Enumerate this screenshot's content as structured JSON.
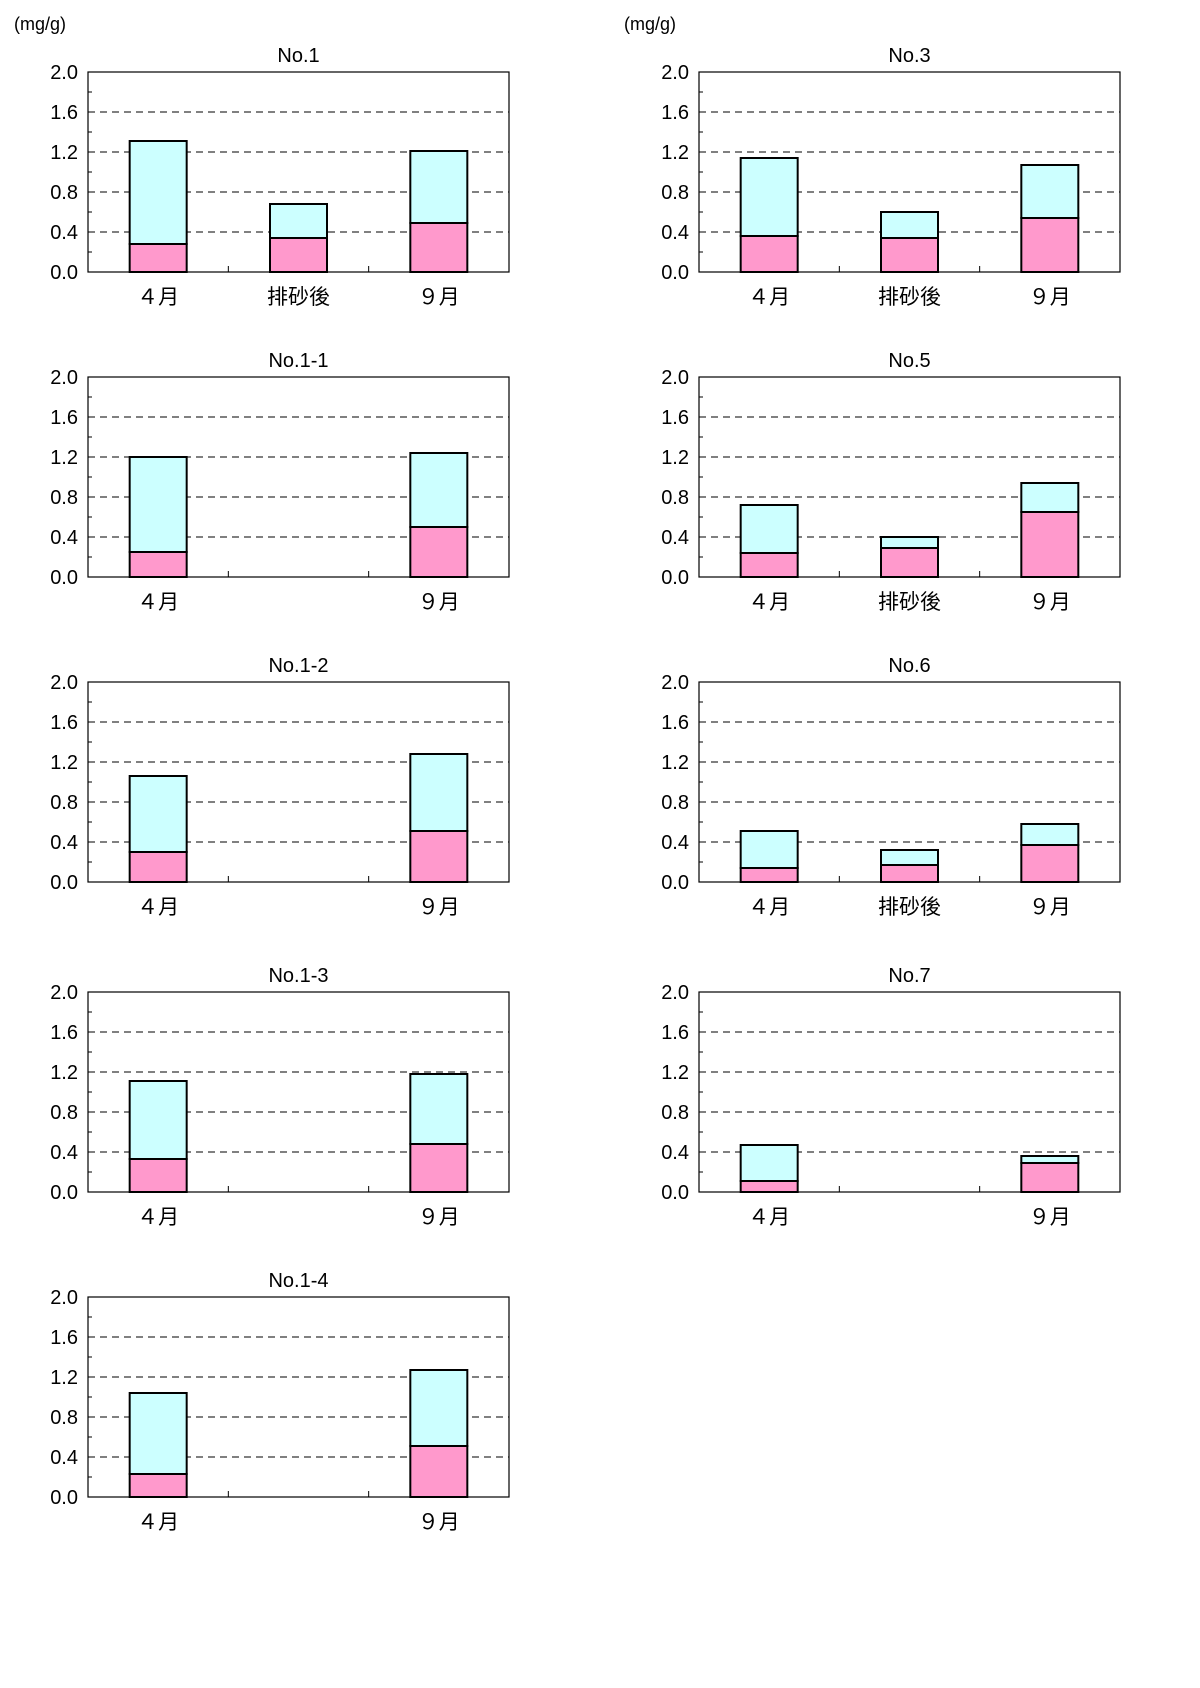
{
  "units": {
    "left": "(mg/g)",
    "right": "(mg/g)"
  },
  "colors": {
    "upper": "#ccffff",
    "lower": "#ff99cc",
    "edge": "#000000",
    "grid": "#000000"
  },
  "chart_data": [
    {
      "type": "bar",
      "stacked": true,
      "title": "No.1",
      "categories": [
        "４月",
        "排砂後",
        "９月"
      ],
      "ylim": [
        0,
        2.0
      ],
      "yticks": [
        "0.0",
        "0.4",
        "0.8",
        "1.2",
        "1.6",
        "2.0"
      ],
      "grid": "dashed",
      "series": [
        {
          "values": [
            0.28,
            0.34,
            0.49
          ]
        },
        {
          "values": [
            1.03,
            0.34,
            0.72
          ]
        }
      ]
    },
    {
      "type": "bar",
      "stacked": true,
      "title": "No.3",
      "categories": [
        "４月",
        "排砂後",
        "９月"
      ],
      "ylim": [
        0,
        2.0
      ],
      "yticks": [
        "0.0",
        "0.4",
        "0.8",
        "1.2",
        "1.6",
        "2.0"
      ],
      "grid": "dashed",
      "series": [
        {
          "values": [
            0.36,
            0.34,
            0.54
          ]
        },
        {
          "values": [
            0.78,
            0.26,
            0.53
          ]
        }
      ]
    },
    {
      "type": "bar",
      "stacked": true,
      "title": "No.1-1",
      "categories": [
        "４月",
        "",
        "９月"
      ],
      "ylim": [
        0,
        2.0
      ],
      "yticks": [
        "0.0",
        "0.4",
        "0.8",
        "1.2",
        "1.6",
        "2.0"
      ],
      "grid": "dashed",
      "series": [
        {
          "values": [
            0.25,
            null,
            0.5
          ]
        },
        {
          "values": [
            0.95,
            null,
            0.74
          ]
        }
      ]
    },
    {
      "type": "bar",
      "stacked": true,
      "title": "No.5",
      "categories": [
        "４月",
        "排砂後",
        "９月"
      ],
      "ylim": [
        0,
        2.0
      ],
      "yticks": [
        "0.0",
        "0.4",
        "0.8",
        "1.2",
        "1.6",
        "2.0"
      ],
      "grid": "dashed",
      "series": [
        {
          "values": [
            0.24,
            0.29,
            0.65
          ]
        },
        {
          "values": [
            0.48,
            0.11,
            0.29
          ]
        }
      ]
    },
    {
      "type": "bar",
      "stacked": true,
      "title": "No.1-2",
      "categories": [
        "４月",
        "",
        "９月"
      ],
      "ylim": [
        0,
        2.0
      ],
      "yticks": [
        "0.0",
        "0.4",
        "0.8",
        "1.2",
        "1.6",
        "2.0"
      ],
      "grid": "dashed",
      "series": [
        {
          "values": [
            0.3,
            null,
            0.51
          ]
        },
        {
          "values": [
            0.76,
            null,
            0.77
          ]
        }
      ]
    },
    {
      "type": "bar",
      "stacked": true,
      "title": "No.6",
      "categories": [
        "４月",
        "排砂後",
        "９月"
      ],
      "ylim": [
        0,
        2.0
      ],
      "yticks": [
        "0.0",
        "0.4",
        "0.8",
        "1.2",
        "1.6",
        "2.0"
      ],
      "grid": "dashed",
      "series": [
        {
          "values": [
            0.14,
            0.17,
            0.37
          ]
        },
        {
          "values": [
            0.37,
            0.15,
            0.21
          ]
        }
      ]
    },
    {
      "type": "bar",
      "stacked": true,
      "title": "No.1-3",
      "categories": [
        "４月",
        "",
        "９月"
      ],
      "ylim": [
        0,
        2.0
      ],
      "yticks": [
        "0.0",
        "0.4",
        "0.8",
        "1.2",
        "1.6",
        "2.0"
      ],
      "grid": "dashed",
      "series": [
        {
          "values": [
            0.33,
            null,
            0.48
          ]
        },
        {
          "values": [
            0.78,
            null,
            0.7
          ]
        }
      ]
    },
    {
      "type": "bar",
      "stacked": true,
      "title": "No.7",
      "categories": [
        "４月",
        "",
        "９月"
      ],
      "ylim": [
        0,
        2.0
      ],
      "yticks": [
        "0.0",
        "0.4",
        "0.8",
        "1.2",
        "1.6",
        "2.0"
      ],
      "grid": "dashed",
      "series": [
        {
          "values": [
            0.11,
            null,
            0.29
          ]
        },
        {
          "values": [
            0.36,
            null,
            0.07
          ]
        }
      ]
    },
    {
      "type": "bar",
      "stacked": true,
      "title": "No.1-4",
      "categories": [
        "４月",
        "",
        "９月"
      ],
      "ylim": [
        0,
        2.0
      ],
      "yticks": [
        "0.0",
        "0.4",
        "0.8",
        "1.2",
        "1.6",
        "2.0"
      ],
      "grid": "dashed",
      "series": [
        {
          "values": [
            0.23,
            null,
            0.51
          ]
        },
        {
          "values": [
            0.81,
            null,
            0.76
          ]
        }
      ]
    }
  ]
}
